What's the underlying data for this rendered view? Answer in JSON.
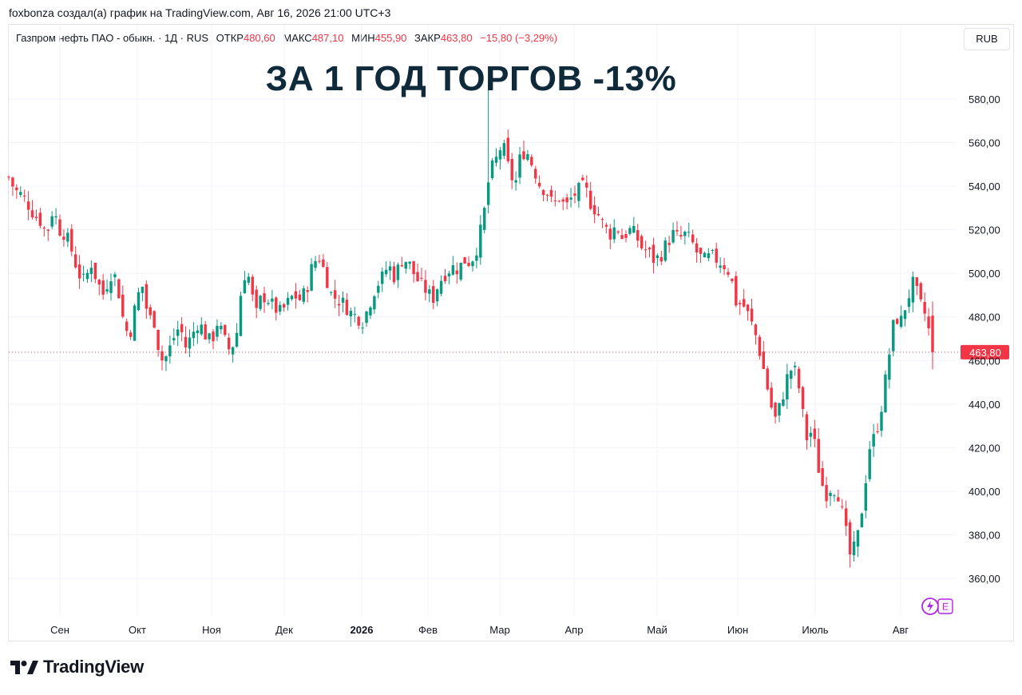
{
  "attribution": "foxbonza создал(а) график на TradingView.com, Авг 16, 2026 21:00 UTC+3",
  "legend": {
    "symbol": "Газпром нефть ПАО - обыкн. · 1Д · RUS",
    "open_label": "ОТКР",
    "open": "480,60",
    "high_label": "МАКС",
    "high": "487,10",
    "low_label": "МИН",
    "low": "455,90",
    "close_label": "ЗАКР",
    "close": "463,80",
    "change": "−15,80 (−3,29%)"
  },
  "currency": "RUB",
  "headline": "ЗА 1 ГОД ТОРГОВ -13%",
  "brand": "TradingView",
  "colors": {
    "up": "#089981",
    "down": "#f23645",
    "grid": "#f0f3fa",
    "headline": "#0f2a3a"
  },
  "chart_data": {
    "type": "candlestick",
    "y_ticks": [
      "580,00",
      "560,00",
      "540,00",
      "520,00",
      "500,00",
      "480,00",
      "460,00",
      "440,00",
      "420,00",
      "400,00",
      "380,00",
      "360,00"
    ],
    "y_tick_values": [
      580,
      560,
      540,
      520,
      500,
      480,
      460,
      440,
      420,
      400,
      380,
      360
    ],
    "x_labels": [
      "Сен",
      "Окт",
      "Ноя",
      "Дек",
      "2026",
      "Фев",
      "Мар",
      "Апр",
      "Май",
      "Июн",
      "Июль",
      "Авг"
    ],
    "x_label_bold": [
      false,
      false,
      false,
      false,
      true,
      false,
      false,
      false,
      false,
      false,
      false,
      false
    ],
    "last_price": 463.8,
    "last_price_label": "463,80",
    "ylim": [
      345,
      595
    ],
    "close_path": [
      [
        0,
        544
      ],
      [
        5,
        538
      ],
      [
        10,
        536
      ],
      [
        15,
        532
      ],
      [
        20,
        527
      ],
      [
        25,
        524
      ],
      [
        30,
        518
      ],
      [
        35,
        530
      ],
      [
        40,
        520
      ],
      [
        45,
        518
      ],
      [
        50,
        510
      ],
      [
        55,
        500
      ],
      [
        60,
        496
      ],
      [
        65,
        505
      ],
      [
        70,
        496
      ],
      [
        75,
        490
      ],
      [
        80,
        500
      ],
      [
        85,
        498
      ],
      [
        90,
        480
      ],
      [
        95,
        470
      ],
      [
        100,
        485
      ],
      [
        105,
        496
      ],
      [
        110,
        480
      ],
      [
        115,
        478
      ],
      [
        120,
        460
      ],
      [
        125,
        462
      ],
      [
        130,
        470
      ],
      [
        135,
        476
      ],
      [
        140,
        466
      ],
      [
        145,
        472
      ],
      [
        150,
        478
      ],
      [
        155,
        472
      ],
      [
        160,
        468
      ],
      [
        165,
        478
      ],
      [
        170,
        470
      ],
      [
        175,
        464
      ],
      [
        180,
        472
      ],
      [
        185,
        500
      ],
      [
        190,
        498
      ],
      [
        195,
        480
      ],
      [
        200,
        490
      ],
      [
        205,
        488
      ],
      [
        210,
        484
      ],
      [
        215,
        482
      ],
      [
        220,
        486
      ],
      [
        225,
        490
      ],
      [
        230,
        488
      ],
      [
        235,
        492
      ],
      [
        240,
        504
      ],
      [
        245,
        508
      ],
      [
        250,
        500
      ],
      [
        255,
        490
      ],
      [
        260,
        488
      ],
      [
        265,
        486
      ],
      [
        270,
        482
      ],
      [
        275,
        480
      ],
      [
        280,
        478
      ],
      [
        285,
        486
      ],
      [
        290,
        494
      ],
      [
        295,
        498
      ],
      [
        300,
        504
      ],
      [
        305,
        498
      ],
      [
        310,
        506
      ],
      [
        315,
        506
      ],
      [
        320,
        500
      ],
      [
        325,
        495
      ],
      [
        330,
        492
      ],
      [
        335,
        488
      ],
      [
        340,
        496
      ],
      [
        345,
        500
      ],
      [
        350,
        503
      ],
      [
        355,
        502
      ],
      [
        360,
        506
      ],
      [
        365,
        505
      ],
      [
        370,
        512
      ],
      [
        375,
        525
      ],
      [
        380,
        546
      ],
      [
        385,
        552
      ],
      [
        390,
        560
      ],
      [
        395,
        548
      ],
      [
        400,
        540
      ],
      [
        405,
        556
      ],
      [
        410,
        555
      ],
      [
        415,
        548
      ],
      [
        420,
        540
      ],
      [
        425,
        538
      ],
      [
        430,
        531
      ],
      [
        435,
        535
      ],
      [
        440,
        530
      ],
      [
        445,
        535
      ],
      [
        450,
        538
      ],
      [
        455,
        540
      ],
      [
        460,
        532
      ],
      [
        465,
        528
      ],
      [
        470,
        522
      ],
      [
        475,
        518
      ],
      [
        480,
        522
      ],
      [
        485,
        516
      ],
      [
        490,
        520
      ],
      [
        495,
        518
      ],
      [
        500,
        512
      ],
      [
        505,
        510
      ],
      [
        510,
        506
      ],
      [
        515,
        508
      ],
      [
        520,
        514
      ],
      [
        525,
        518
      ],
      [
        530,
        516
      ],
      [
        535,
        518
      ],
      [
        540,
        514
      ],
      [
        545,
        508
      ],
      [
        550,
        506
      ],
      [
        555,
        508
      ],
      [
        560,
        506
      ],
      [
        565,
        504
      ],
      [
        570,
        500
      ],
      [
        575,
        486
      ],
      [
        580,
        486
      ],
      [
        585,
        480
      ],
      [
        590,
        472
      ],
      [
        595,
        460
      ],
      [
        600,
        446
      ],
      [
        605,
        432
      ],
      [
        610,
        440
      ],
      [
        615,
        452
      ],
      [
        620,
        458
      ],
      [
        625,
        446
      ],
      [
        630,
        424
      ],
      [
        635,
        428
      ],
      [
        640,
        410
      ],
      [
        645,
        398
      ],
      [
        650,
        402
      ],
      [
        655,
        400
      ],
      [
        660,
        386
      ],
      [
        665,
        370
      ],
      [
        670,
        376
      ],
      [
        675,
        395
      ],
      [
        680,
        420
      ],
      [
        685,
        426
      ],
      [
        690,
        440
      ],
      [
        695,
        460
      ],
      [
        700,
        480
      ],
      [
        705,
        478
      ],
      [
        710,
        488
      ],
      [
        715,
        496
      ],
      [
        720,
        486
      ],
      [
        725,
        480
      ],
      [
        730,
        463.8
      ]
    ],
    "wick_spikes": [
      [
        380,
        588
      ],
      [
        665,
        365
      ]
    ]
  }
}
